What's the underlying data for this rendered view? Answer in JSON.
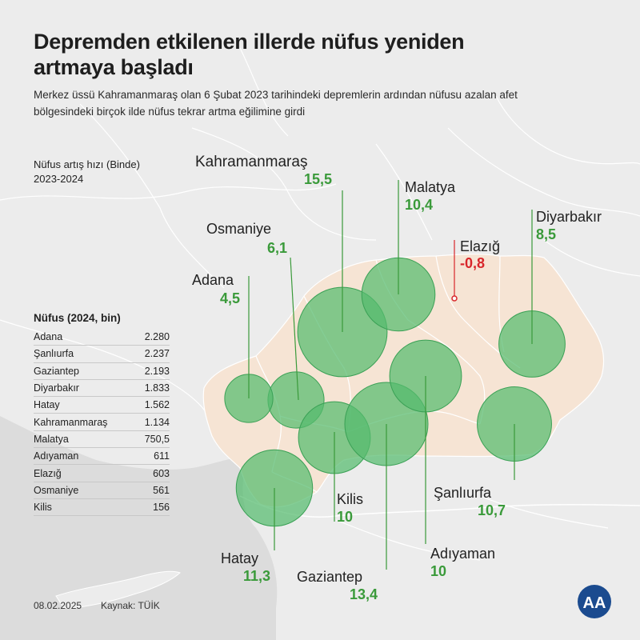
{
  "title": "Depremden etkilenen illerde nüfus yeniden artmaya başladı",
  "subtitle": "Merkez üssü Kahramanmaraş olan 6 Şubat 2023 tarihindeki depremlerin ardından nüfusu azalan afet bölgesindeki birçok ilde nüfus tekrar artma eğilimine girdi",
  "growth_legend": {
    "line1": "Nüfus artış hızı (Binde)",
    "line2": "2023-2024"
  },
  "population_table": {
    "header": "Nüfus (2024, bin)",
    "rows": [
      {
        "city": "Adana",
        "value": "2.280"
      },
      {
        "city": "Şanlıurfa",
        "value": "2.237"
      },
      {
        "city": "Gaziantep",
        "value": "2.193"
      },
      {
        "city": "Diyarbakır",
        "value": "1.833"
      },
      {
        "city": "Hatay",
        "value": "1.562"
      },
      {
        "city": "Kahramanmaraş",
        "value": "1.134"
      },
      {
        "city": "Malatya",
        "value": "750,5"
      },
      {
        "city": "Adıyaman",
        "value": "611"
      },
      {
        "city": "Elazığ",
        "value": "603"
      },
      {
        "city": "Osmaniye",
        "value": "561"
      },
      {
        "city": "Kilis",
        "value": "156"
      }
    ]
  },
  "cities": [
    {
      "id": "kahramanmaras",
      "name": "Kahramanmaraş",
      "rate": "15,5",
      "rate_num": 15.5
    },
    {
      "id": "malatya",
      "name": "Malatya",
      "rate": "10,4",
      "rate_num": 10.4
    },
    {
      "id": "diyarbakir",
      "name": "Diyarbakır",
      "rate": "8,5",
      "rate_num": 8.5
    },
    {
      "id": "elazig",
      "name": "Elazığ",
      "rate": "-0,8",
      "rate_num": -0.8
    },
    {
      "id": "osmaniye",
      "name": "Osmaniye",
      "rate": "6,1",
      "rate_num": 6.1
    },
    {
      "id": "adana",
      "name": "Adana",
      "rate": "4,5",
      "rate_num": 4.5
    },
    {
      "id": "kilis",
      "name": "Kilis",
      "rate": "10",
      "rate_num": 10
    },
    {
      "id": "sanliurfa",
      "name": "Şanlıurfa",
      "rate": "10,7",
      "rate_num": 10.7
    },
    {
      "id": "hatay",
      "name": "Hatay",
      "rate": "11,3",
      "rate_num": 11.3
    },
    {
      "id": "gaziantep",
      "name": "Gaziantep",
      "rate": "13,4",
      "rate_num": 13.4
    },
    {
      "id": "adiyaman",
      "name": "Adıyaman",
      "rate": "10",
      "rate_num": 10
    }
  ],
  "footer": {
    "date": "08.02.2025",
    "source": "Kaynak: TÜİK",
    "logo_text": "AA"
  },
  "colors": {
    "background": "#ebebeb",
    "land": "#f2f2f2",
    "border": "#ffffff",
    "sea": "#d6d6d6",
    "region": "#f6e4d4",
    "bubble": "#55bb6e",
    "positive": "#3a9a3a",
    "negative": "#d8262b",
    "logo": "#1b4b8f"
  }
}
